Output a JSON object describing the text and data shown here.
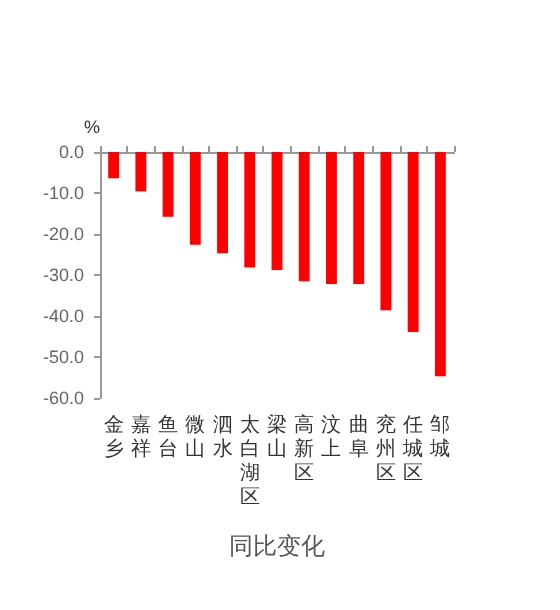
{
  "chart_data": {
    "type": "bar",
    "ylabel": "%",
    "xlabel": "同比变化",
    "categories": [
      "金乡",
      "嘉祥",
      "鱼台",
      "微山",
      "泗水",
      "太白湖区",
      "梁山",
      "高新区",
      "汶上",
      "曲阜",
      "兖州区",
      "任城区",
      "邹城"
    ],
    "values": [
      -6.4,
      -9.6,
      -15.8,
      -22.6,
      -24.7,
      -28.2,
      -28.8,
      -31.5,
      -32.2,
      -32.2,
      -38.6,
      -43.9,
      -54.7
    ],
    "color": "#ff0000",
    "ylim": [
      -60,
      0
    ],
    "yticks": [
      {
        "value": 0,
        "label": "0.0"
      },
      {
        "value": -10,
        "label": "-10.0"
      },
      {
        "value": -20,
        "label": "-20.0"
      },
      {
        "value": -30,
        "label": "-30.0"
      },
      {
        "value": -40,
        "label": "-40.0"
      },
      {
        "value": -50,
        "label": "-50.0"
      },
      {
        "value": -60,
        "label": "-60.0"
      }
    ],
    "grid": false
  }
}
